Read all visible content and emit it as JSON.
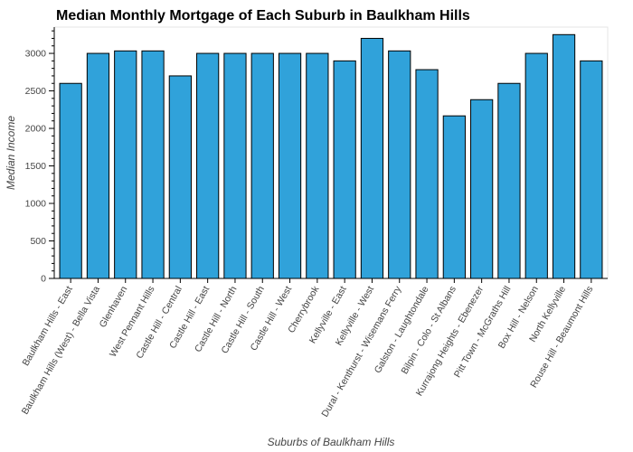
{
  "chart_data": {
    "type": "bar",
    "title": "Median Monthly Mortgage of Each Suburb in Baulkham Hills",
    "xlabel": "Suburbs of Baulkham Hills",
    "ylabel": "Median Income",
    "ylim": [
      0,
      3350
    ],
    "yticks": [
      0,
      500,
      1000,
      1500,
      2000,
      2500,
      3000
    ],
    "grid": false,
    "bar_color": "#30a2da",
    "categories": [
      "Baulkham Hills - East",
      "Baulkham Hills (West) - Bella Vista",
      "Glenhaven",
      "West Pennant Hills",
      "Castle Hill - Central",
      "Castle Hill - East",
      "Castle Hill - North",
      "Castle Hill - South",
      "Castle Hill - West",
      "Cherrybrook",
      "Kellyville - East",
      "Kellyville - West",
      "Dural - Kenthurst - Wisemans Ferry",
      "Galston - Laughtondale",
      "Bilpin - Colo - St Albans",
      "Kurrajong Heights - Ebenezer",
      "Pitt Town - McGraths Hill",
      "Box Hill - Nelson",
      "North Kellyville",
      "Rouse Hill - Beaumont Hills"
    ],
    "values": [
      2600,
      3000,
      3033,
      3033,
      2700,
      3000,
      3000,
      3000,
      3000,
      3000,
      2900,
      3200,
      3033,
      2783,
      2167,
      2383,
      2600,
      3000,
      3250,
      2900
    ]
  }
}
